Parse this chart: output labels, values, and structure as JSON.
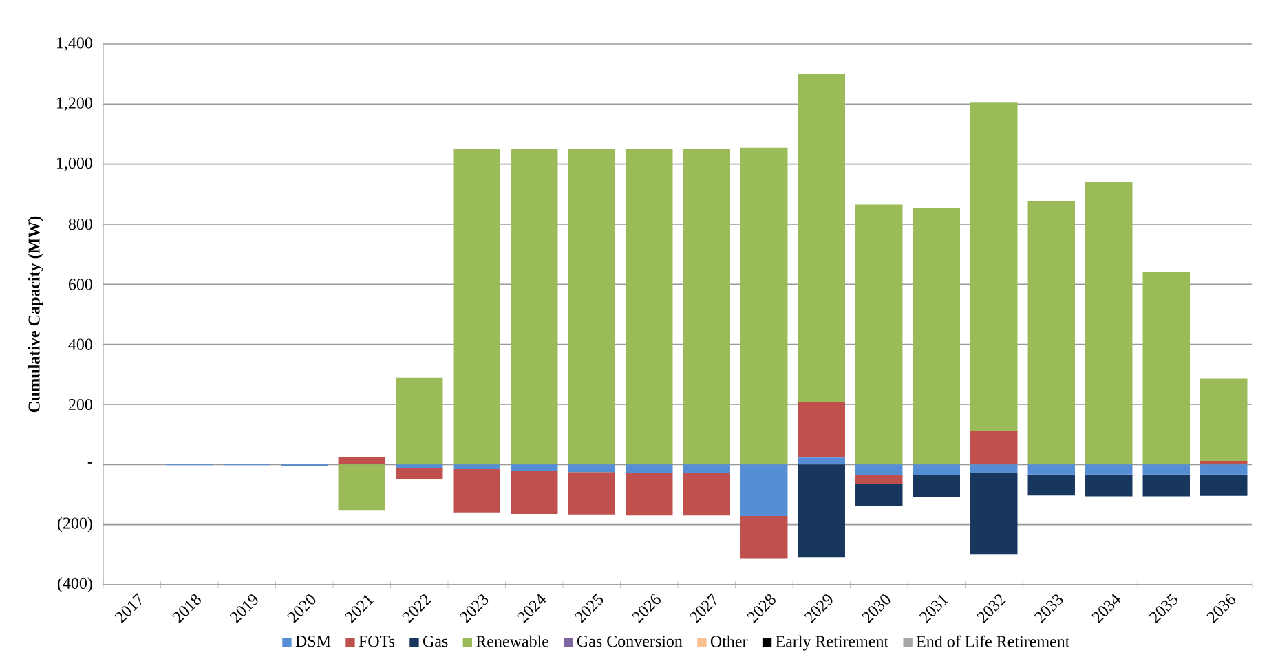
{
  "chart_data": {
    "type": "bar",
    "ylabel": "Cumulative Capacity (MW)",
    "stacked": true,
    "grid": "y",
    "legend": "bottom",
    "categories": [
      "2017",
      "2018",
      "2019",
      "2020",
      "2021",
      "2022",
      "2023",
      "2024",
      "2025",
      "2026",
      "2027",
      "2028",
      "2029",
      "2030",
      "2031",
      "2032",
      "2033",
      "2034",
      "2035",
      "2036"
    ],
    "ylim": [
      -400,
      1400
    ],
    "yticks": [
      {
        "value": -400,
        "label": "(400)"
      },
      {
        "value": -200,
        "label": "(200)"
      },
      {
        "value": 0,
        "label": "-"
      },
      {
        "value": 200,
        "label": "200"
      },
      {
        "value": 400,
        "label": "400"
      },
      {
        "value": 600,
        "label": "600"
      },
      {
        "value": 800,
        "label": "800"
      },
      {
        "value": 1000,
        "label": "1,000"
      },
      {
        "value": 1200,
        "label": "1,200"
      },
      {
        "value": 1400,
        "label": "1,400"
      }
    ],
    "series": [
      {
        "name": "DSM",
        "color": "#558ed5",
        "values": [
          0,
          -2,
          -2,
          -4,
          0,
          -13,
          -15,
          -20,
          -25,
          -28,
          -28,
          -171,
          23,
          -35,
          -35,
          -28,
          -33,
          -33,
          -33,
          -33
        ]
      },
      {
        "name": "FOTs",
        "color": "#c0504d",
        "values": [
          0,
          0,
          0,
          3,
          25,
          -35,
          -146,
          -144,
          -141,
          -141,
          -141,
          -141,
          186,
          -30,
          0,
          111,
          0,
          0,
          0,
          12
        ]
      },
      {
        "name": "Gas",
        "color": "#17375e",
        "values": [
          0,
          0,
          0,
          0,
          0,
          0,
          0,
          0,
          0,
          0,
          0,
          0,
          -309,
          -73,
          -73,
          -272,
          -70,
          -73,
          -73,
          -71
        ]
      },
      {
        "name": "Renewable",
        "color": "#9bbb59",
        "values": [
          0,
          0,
          0,
          0,
          -153,
          290,
          1050,
          1050,
          1050,
          1050,
          1050,
          1055,
          1091,
          865,
          855,
          1094,
          878,
          940,
          640,
          274
        ]
      },
      {
        "name": "Gas Conversion",
        "color": "#8064a2",
        "values": [
          0,
          0,
          0,
          0,
          0,
          0,
          0,
          0,
          0,
          0,
          0,
          0,
          0,
          0,
          0,
          0,
          0,
          0,
          0,
          0
        ]
      },
      {
        "name": "Other",
        "color": "#fac090",
        "values": [
          0,
          0,
          0,
          0,
          0,
          0,
          0,
          0,
          0,
          0,
          0,
          0,
          0,
          0,
          0,
          0,
          0,
          0,
          0,
          0
        ]
      },
      {
        "name": "Early Retirement",
        "color": "#000000",
        "values": [
          0,
          0,
          0,
          0,
          0,
          0,
          0,
          0,
          0,
          0,
          0,
          0,
          0,
          0,
          0,
          0,
          0,
          0,
          0,
          0
        ]
      },
      {
        "name": "End of Life Retirement",
        "color": "#a6a6a6",
        "values": [
          0,
          0,
          0,
          0,
          0,
          0,
          0,
          0,
          0,
          0,
          0,
          0,
          0,
          0,
          0,
          0,
          0,
          0,
          0,
          0
        ]
      }
    ]
  }
}
